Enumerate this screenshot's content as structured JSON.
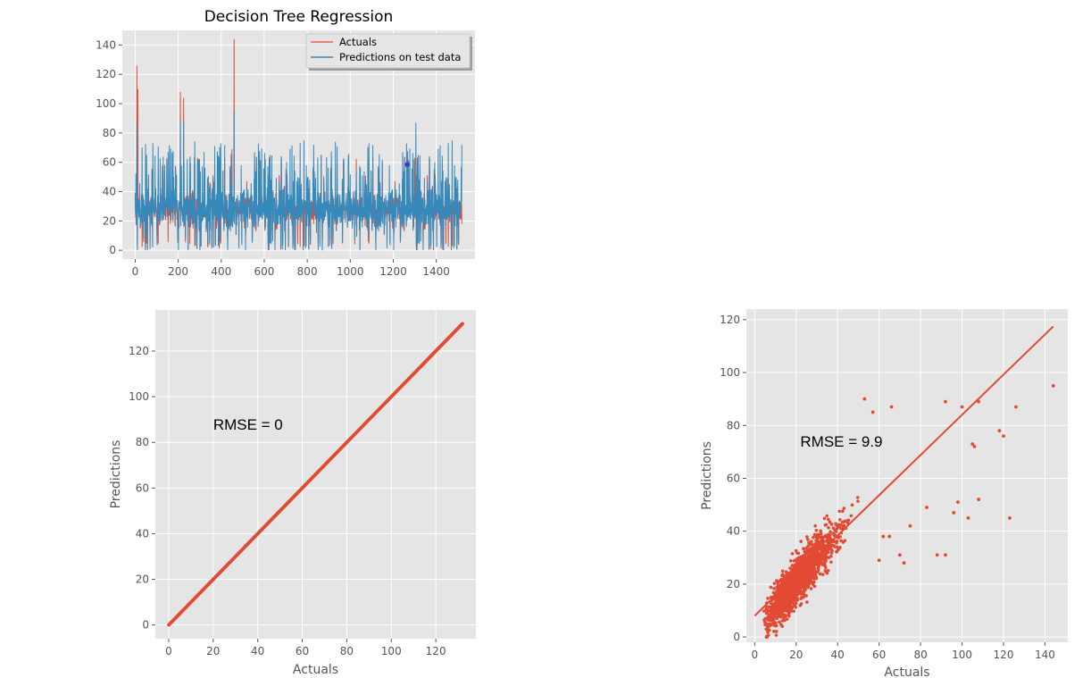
{
  "colors": {
    "actual": "#e24a33",
    "pred": "#348abd",
    "panel": "#e5e5e5",
    "grid": "#ffffff",
    "extra": "#3340cc"
  },
  "chart_data": [
    {
      "type": "line",
      "title": "Decision Tree Regression",
      "xlabel": "",
      "ylabel": "",
      "xlim": [
        -60,
        1580
      ],
      "ylim": [
        -6,
        150
      ],
      "xticks": [
        0,
        200,
        400,
        600,
        800,
        1000,
        1200,
        1400
      ],
      "yticks": [
        0,
        20,
        40,
        60,
        80,
        100,
        120,
        140
      ],
      "legend_position": "top-right",
      "grid": true,
      "n_points": 1520,
      "series": [
        {
          "name": "Actuals",
          "color": "#e24a33",
          "peaks": [
            [
              8,
              126
            ],
            [
              12,
              110
            ],
            [
              210,
              108
            ],
            [
              225,
              104
            ],
            [
              450,
              69
            ],
            [
              460,
              144
            ],
            [
              1300,
              63
            ]
          ],
          "typical_range": [
            0,
            55
          ]
        },
        {
          "name": "Predictions on test data",
          "color": "#348abd",
          "peaks": [
            [
              8,
              86
            ],
            [
              210,
              88
            ],
            [
              225,
              89
            ],
            [
              460,
              95
            ],
            [
              1305,
              87
            ]
          ],
          "typical_range": [
            0,
            55
          ]
        }
      ],
      "extra_point": {
        "x": 1265,
        "y": 58.5,
        "color": "#3340cc"
      }
    },
    {
      "type": "scatter",
      "xlabel": "Actuals",
      "ylabel": "Predictions",
      "xlim": [
        -6,
        138
      ],
      "ylim": [
        -6,
        138
      ],
      "xticks": [
        0,
        20,
        40,
        60,
        80,
        100,
        120
      ],
      "yticks": [
        0,
        20,
        40,
        60,
        80,
        100,
        120
      ],
      "grid": true,
      "annotation": {
        "text": "RMSE = 0",
        "x": 20,
        "y": 88
      },
      "series": [
        {
          "kind": "points",
          "color": "#e24a33",
          "x_range": [
            0,
            132
          ],
          "relation": "y = x",
          "count": 900
        },
        {
          "kind": "fit_line",
          "color": "#e24a33",
          "slope": 1,
          "intercept": 0,
          "x_range": [
            0,
            132
          ]
        }
      ]
    },
    {
      "type": "scatter",
      "xlabel": "Actuals",
      "ylabel": "Predictions",
      "xlim": [
        -4,
        151
      ],
      "ylim": [
        -2,
        124
      ],
      "xticks": [
        0,
        20,
        40,
        60,
        80,
        100,
        120,
        140
      ],
      "yticks": [
        0,
        20,
        40,
        60,
        80,
        100,
        120
      ],
      "grid": true,
      "annotation": {
        "text": "RMSE = 9.9",
        "x": 22,
        "y": 74
      },
      "series": [
        {
          "kind": "points",
          "color": "#e24a33",
          "count": 1500,
          "cluster": {
            "x_range": [
              0,
              55
            ],
            "relation": "y ≈ x ± noise"
          },
          "outliers": [
            [
              53,
              90
            ],
            [
              57,
              85
            ],
            [
              66,
              87
            ],
            [
              92,
              89
            ],
            [
              100,
              87
            ],
            [
              108,
              89
            ],
            [
              118,
              78
            ],
            [
              120,
              76
            ],
            [
              126,
              87
            ],
            [
              144,
              95
            ],
            [
              105,
              73
            ],
            [
              106,
              72
            ],
            [
              96,
              47
            ],
            [
              98,
              51
            ],
            [
              103,
              45
            ],
            [
              108,
              52
            ],
            [
              123,
              45
            ],
            [
              83,
              49
            ],
            [
              88,
              31
            ],
            [
              92,
              31
            ],
            [
              75,
              42
            ],
            [
              70,
              31
            ],
            [
              72,
              28
            ],
            [
              65,
              38
            ],
            [
              62,
              38
            ],
            [
              60,
              29
            ]
          ]
        },
        {
          "kind": "fit_line",
          "color": "#e24a33",
          "slope": 0.76,
          "intercept": 8,
          "x_range": [
            0,
            144
          ]
        }
      ]
    }
  ]
}
